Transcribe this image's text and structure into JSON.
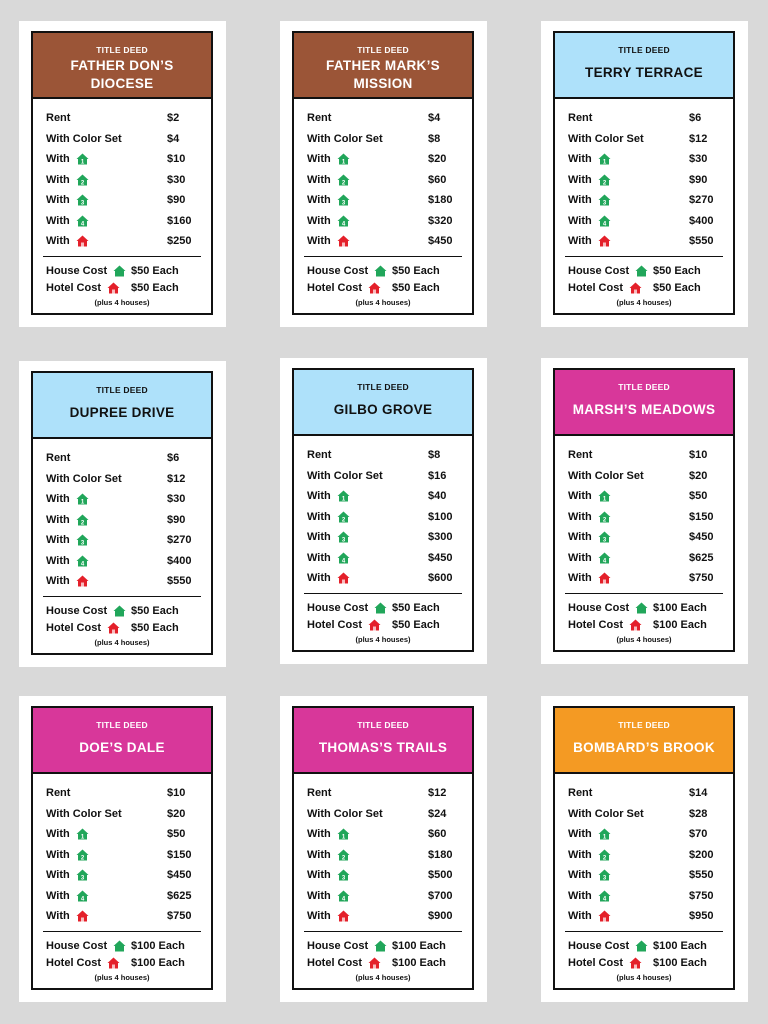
{
  "colors": {
    "brown": "#9b5537",
    "light_blue": "#aee1fa",
    "pink": "#d8379a",
    "orange": "#f49a23",
    "house_green": "#21a65a",
    "hotel_red": "#e4202a"
  },
  "labels": {
    "title_deed": "TITLE DEED",
    "rent": "Rent",
    "with_color_set": "With Color Set",
    "with": "With",
    "house_cost": "House Cost",
    "hotel_cost": "Hotel Cost",
    "note": "(plus 4 houses)"
  },
  "cards": [
    {
      "name": "FATHER DON’S DIOCESE",
      "color": "brown",
      "light": false,
      "rent": [
        "$2",
        "$4",
        "$10",
        "$30",
        "$90",
        "$160",
        "$250"
      ],
      "house": "$50 Each",
      "hotel": "$50 Each"
    },
    {
      "name": "FATHER MARK’S MISSION",
      "color": "brown",
      "light": false,
      "rent": [
        "$4",
        "$8",
        "$20",
        "$60",
        "$180",
        "$320",
        "$450"
      ],
      "house": "$50 Each",
      "hotel": "$50 Each"
    },
    {
      "name": "TERRY TERRACE",
      "color": "light_blue",
      "light": true,
      "rent": [
        "$6",
        "$12",
        "$30",
        "$90",
        "$270",
        "$400",
        "$550"
      ],
      "house": "$50 Each",
      "hotel": "$50 Each"
    },
    {
      "name": "DUPREE DRIVE",
      "color": "light_blue",
      "light": true,
      "rent": [
        "$6",
        "$12",
        "$30",
        "$90",
        "$270",
        "$400",
        "$550"
      ],
      "house": "$50 Each",
      "hotel": "$50 Each"
    },
    {
      "name": "GILBO GROVE",
      "color": "light_blue",
      "light": true,
      "rent": [
        "$8",
        "$16",
        "$40",
        "$100",
        "$300",
        "$450",
        "$600"
      ],
      "house": "$50 Each",
      "hotel": "$50 Each"
    },
    {
      "name": "MARSH’S MEADOWS",
      "color": "pink",
      "light": false,
      "rent": [
        "$10",
        "$20",
        "$50",
        "$150",
        "$450",
        "$625",
        "$750"
      ],
      "house": "$100 Each",
      "hotel": "$100 Each"
    },
    {
      "name": "DOE’S DALE",
      "color": "pink",
      "light": false,
      "rent": [
        "$10",
        "$20",
        "$50",
        "$150",
        "$450",
        "$625",
        "$750"
      ],
      "house": "$100 Each",
      "hotel": "$100 Each"
    },
    {
      "name": "THOMAS’S TRAILS",
      "color": "pink",
      "light": false,
      "rent": [
        "$12",
        "$24",
        "$60",
        "$180",
        "$500",
        "$700",
        "$900"
      ],
      "house": "$100 Each",
      "hotel": "$100 Each"
    },
    {
      "name": "BOMBARD’S BROOK",
      "color": "orange",
      "light": false,
      "rent": [
        "$14",
        "$28",
        "$70",
        "$200",
        "$550",
        "$750",
        "$950"
      ],
      "house": "$100 Each",
      "hotel": "$100 Each"
    }
  ]
}
